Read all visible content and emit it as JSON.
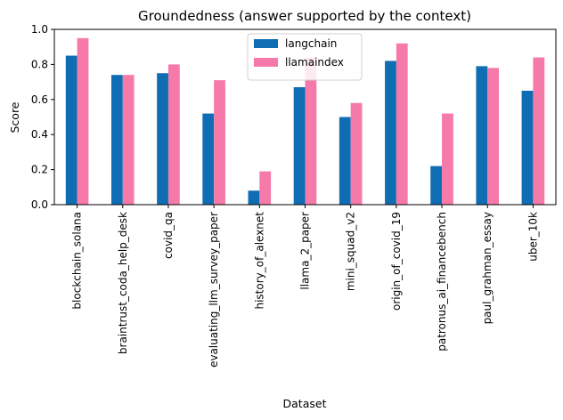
{
  "chart_data": {
    "type": "bar",
    "title": "Groundedness (answer supported by the context)",
    "xlabel": "Dataset",
    "ylabel": "Score",
    "ylim": [
      0,
      1.0
    ],
    "yticks": [
      "0.0",
      "0.2",
      "0.4",
      "0.6",
      "0.8",
      "1.0"
    ],
    "grid": false,
    "legend_position": "top-center",
    "categories": [
      "blockchain_solana",
      "braintrust_coda_help_desk",
      "covid_qa",
      "evaluating_llm_survey_paper",
      "history_of_alexnet",
      "llama_2_paper",
      "mini_squad_v2",
      "origin_of_covid_19",
      "patronus_ai_financebench",
      "paul_grahman_essay",
      "uber_10k"
    ],
    "series": [
      {
        "name": "langchain",
        "color": "#0f6db3",
        "values": [
          0.85,
          0.74,
          0.75,
          0.52,
          0.08,
          0.67,
          0.5,
          0.82,
          0.22,
          0.79,
          0.65
        ]
      },
      {
        "name": "llamaindex",
        "color": "#f67aa9",
        "values": [
          0.95,
          0.74,
          0.8,
          0.71,
          0.19,
          0.84,
          0.58,
          0.92,
          0.52,
          0.78,
          0.84
        ]
      }
    ]
  }
}
